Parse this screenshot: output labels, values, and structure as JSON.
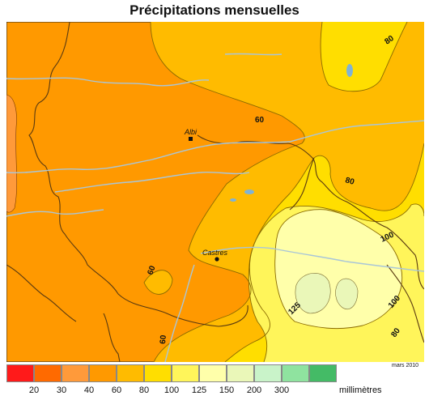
{
  "title": "Précipitations mensuelles",
  "cities": [
    {
      "name": "Albi"
    },
    {
      "name": "Castres"
    }
  ],
  "contour_labels": [
    "60",
    "60",
    "60",
    "80",
    "80",
    "80",
    "100",
    "100",
    "125"
  ],
  "legend": {
    "colors": [
      "#ff1a1a",
      "#ff6a00",
      "#ff9a3a",
      "#ff9900",
      "#ffbb00",
      "#ffde00",
      "#fff55a",
      "#ffffaa",
      "#eaf7b8",
      "#c9f3c9",
      "#8fe39f",
      "#44bb66"
    ],
    "ticks": [
      "20",
      "30",
      "40",
      "60",
      "80",
      "100",
      "125",
      "150",
      "200",
      "300"
    ],
    "unit": "millimètres"
  },
  "credit": "mars 2010",
  "map_colors": {
    "zone_40_60": "#ff9900",
    "zone_60_80": "#ffbb00",
    "zone_80_100": "#ffde00",
    "zone_100_125": "#fff55a",
    "zone_125_150": "#ffffaa",
    "zone_150_200": "#eaf7b8",
    "zone_30_40": "#ff9a3a",
    "rivers": "#a9c6d8",
    "lakes": "#7fb3d5",
    "boundary": "#5a3a10"
  }
}
